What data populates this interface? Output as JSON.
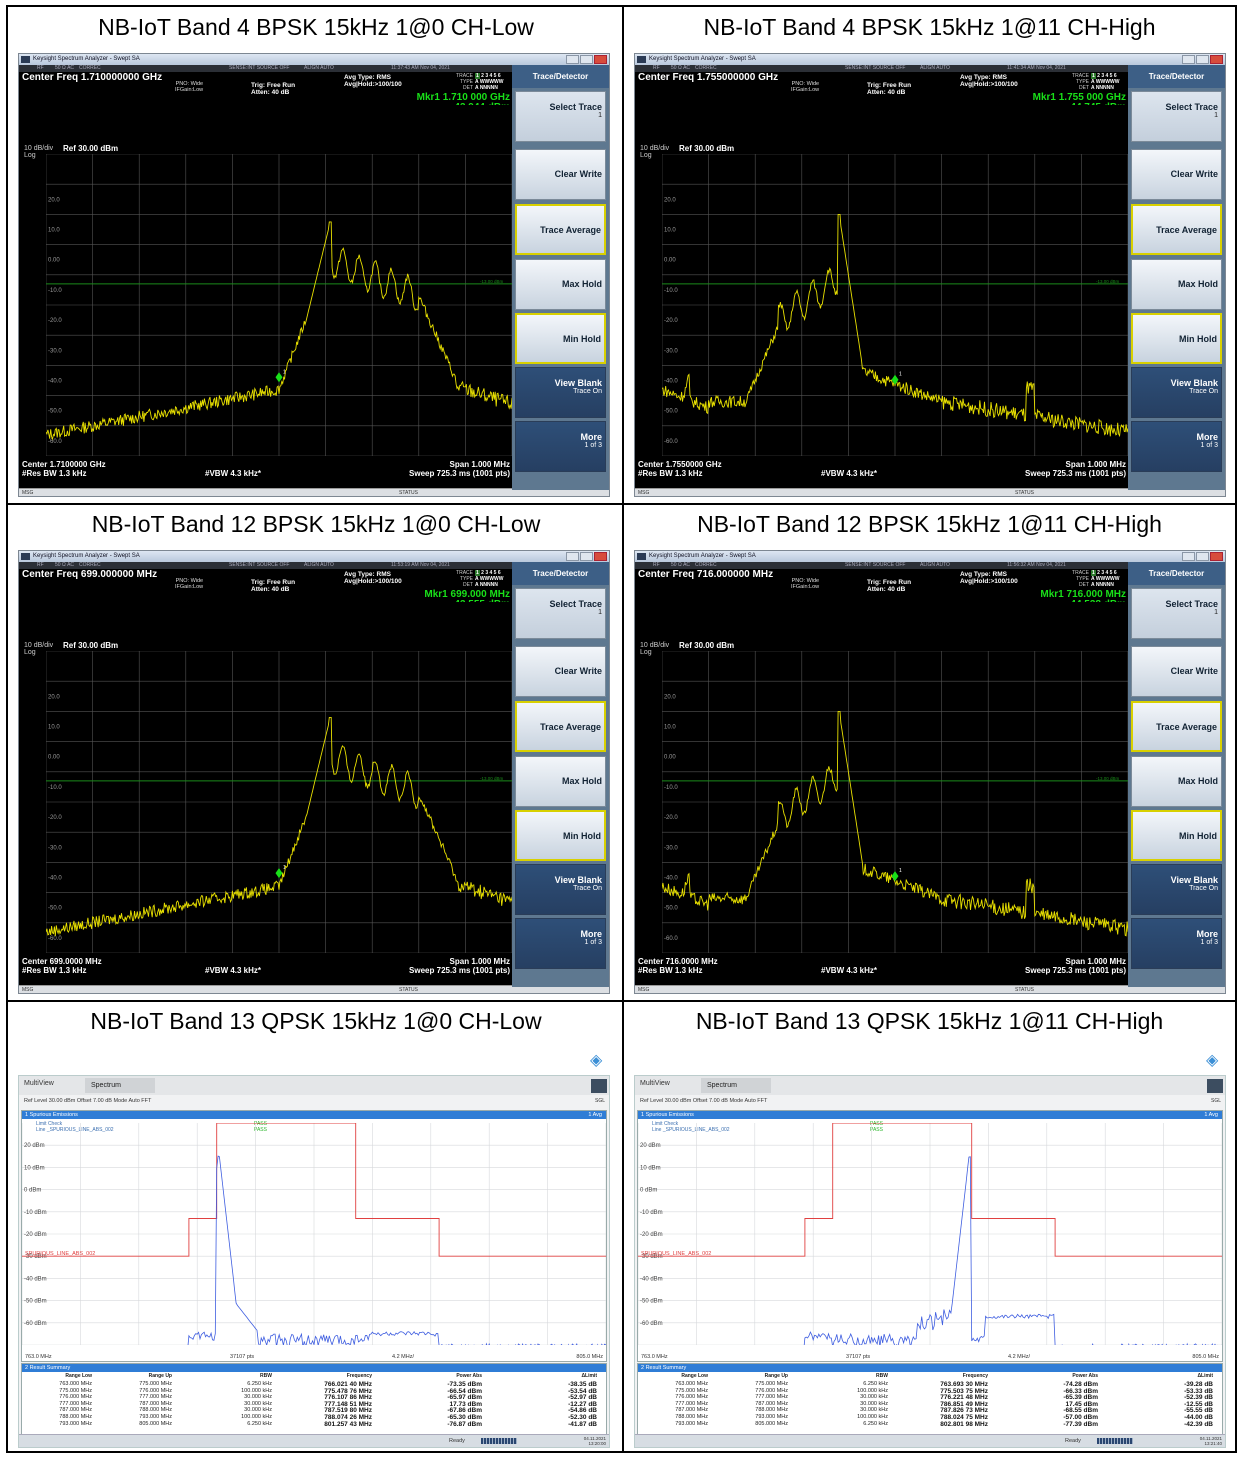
{
  "panels": [
    {
      "caption": "NB-IoT Band 4 BPSK 15kHz 1@0 CH-Low",
      "kind": "keysight",
      "title_bar": "Keysight Spectrum Analyzer - Swept SA",
      "status_strip": {
        "rf": "RF",
        "ohm": "50 Ω AC",
        "correc": "CORREC",
        "sense": "SENSE:INT  SOURCE OFF",
        "align": "ALIGN AUTO",
        "time": "11:37:43 AM Nov 04, 2021"
      },
      "center_freq_label": "Center Freq 1.710000000 GHz",
      "pno": "PNO: Wide",
      "ifgain": "IFGain:Low",
      "trig": "Trig: Free Run",
      "atten": "Atten: 40 dB",
      "avg_type": "Avg Type: RMS",
      "avg_hold": "Avg|Hold:>100/100",
      "trace_label": "TRACE",
      "type_label": "TYPE",
      "det_label": "DET",
      "scale": "10 dB/div",
      "log": "Log",
      "ref": "Ref 30.00 dBm",
      "marker": "Mkr1 1.710 000 GHz",
      "marker_val": "-43.944 dBm",
      "ylabels": [
        "20.0",
        "10.0",
        "0.00",
        "-10.0",
        "-20.0",
        "-30.0",
        "-40.0",
        "-50.0",
        "-60.0"
      ],
      "limit_label": "-13.00 dBm",
      "center_bottom": "Center 1.7100000 GHz",
      "res_bw": "#Res BW 1.3 kHz",
      "vbw": "#VBW 4.3 kHz*",
      "span": "Span 1.000 MHz",
      "sweep": "Sweep  725.3 ms (1001 pts)",
      "msg": "MSG",
      "status": "STATUS",
      "softkey_header": "Trace/Detector",
      "softkeys": [
        {
          "label": "Select Trace",
          "sub": "1"
        },
        {
          "label": "Clear Write",
          "sub": ""
        },
        {
          "label": "Trace Average",
          "sub": ""
        },
        {
          "label": "Max Hold",
          "sub": ""
        },
        {
          "label": "Min Hold",
          "sub": ""
        },
        {
          "label": "View Blank",
          "sub": "Trace On"
        },
        {
          "label": "More",
          "sub": "1 of 3"
        }
      ],
      "spectrum_data": {
        "type": "line",
        "x_span_mhz": 1.0,
        "ylim_dbm": [
          -70,
          30
        ],
        "peak_dbm": 7.5,
        "peak_x": 0.61,
        "marker_x": 0.5,
        "marker_dbm": -43.944,
        "shape": "low"
      }
    },
    {
      "caption": "NB-IoT Band 4 BPSK 15kHz 1@11 CH-High",
      "kind": "keysight",
      "title_bar": "Keysight Spectrum Analyzer - Swept SA",
      "status_strip": {
        "rf": "RF",
        "ohm": "50 Ω AC",
        "correc": "CORREC",
        "sense": "SENSE:INT  SOURCE OFF",
        "align": "ALIGN AUTO",
        "time": "11:41:34 AM Nov 04, 2021"
      },
      "center_freq_label": "Center Freq 1.755000000 GHz",
      "pno": "PNO: Wide",
      "ifgain": "IFGain:Low",
      "trig": "Trig: Free Run",
      "atten": "Atten: 40 dB",
      "avg_type": "Avg Type: RMS",
      "avg_hold": "Avg|Hold:>100/100",
      "trace_label": "TRACE",
      "type_label": "TYPE",
      "det_label": "DET",
      "scale": "10 dB/div",
      "log": "Log",
      "ref": "Ref 30.00 dBm",
      "marker": "Mkr1 1.755 000 GHz",
      "marker_val": "-44.745 dBm",
      "ylabels": [
        "20.0",
        "10.0",
        "0.00",
        "-10.0",
        "-20.0",
        "-30.0",
        "-40.0",
        "-50.0",
        "-60.0"
      ],
      "limit_label": "-13.00 dBm",
      "center_bottom": "Center 1.7550000 GHz",
      "res_bw": "#Res BW 1.3 kHz",
      "vbw": "#VBW 4.3 kHz*",
      "span": "Span 1.000 MHz",
      "sweep": "Sweep  725.3 ms (1001 pts)",
      "msg": "MSG",
      "status": "STATUS",
      "softkey_header": "Trace/Detector",
      "softkeys": [
        {
          "label": "Select Trace",
          "sub": "1"
        },
        {
          "label": "Clear Write",
          "sub": ""
        },
        {
          "label": "Trace Average",
          "sub": ""
        },
        {
          "label": "Max Hold",
          "sub": ""
        },
        {
          "label": "Min Hold",
          "sub": ""
        },
        {
          "label": "View Blank",
          "sub": "Trace On"
        },
        {
          "label": "More",
          "sub": "1 of 3"
        }
      ],
      "spectrum_data": {
        "type": "line",
        "x_span_mhz": 1.0,
        "ylim_dbm": [
          -70,
          30
        ],
        "peak_dbm": 10.0,
        "peak_x": 0.38,
        "marker_x": 0.5,
        "marker_dbm": -44.745,
        "shape": "high"
      }
    },
    {
      "caption": "NB-IoT Band 12 BPSK 15kHz 1@0 CH-Low",
      "kind": "keysight",
      "title_bar": "Keysight Spectrum Analyzer - Swept SA",
      "status_strip": {
        "rf": "RF",
        "ohm": "50 Ω AC",
        "correc": "CORREC",
        "sense": "SENSE:INT  SOURCE OFF",
        "align": "ALIGN AUTO",
        "time": "11:53:19 AM Nov 04, 2021"
      },
      "center_freq_label": "Center Freq 699.000000 MHz",
      "pno": "PNO: Wide",
      "ifgain": "IFGain:Low",
      "trig": "Trig: Free Run",
      "atten": "Atten: 40 dB",
      "avg_type": "Avg Type: RMS",
      "avg_hold": "Avg|Hold:>100/100",
      "trace_label": "TRACE",
      "type_label": "TYPE",
      "det_label": "DET",
      "scale": "10 dB/div",
      "log": "Log",
      "ref": "Ref 30.00 dBm",
      "marker": "Mkr1 699.000 MHz",
      "marker_val": "-43.555 dBm",
      "ylabels": [
        "20.0",
        "10.0",
        "0.00",
        "-10.0",
        "-20.0",
        "-30.0",
        "-40.0",
        "-50.0",
        "-60.0"
      ],
      "limit_label": "-13.00 dBm",
      "center_bottom": "Center 699.0000 MHz",
      "res_bw": "#Res BW 1.3 kHz",
      "vbw": "#VBW 4.3 kHz*",
      "span": "Span 1.000 MHz",
      "sweep": "Sweep  725.3 ms (1001 pts)",
      "msg": "MSG",
      "status": "STATUS",
      "softkey_header": "Trace/Detector",
      "softkeys": [
        {
          "label": "Select Trace",
          "sub": "1"
        },
        {
          "label": "Clear Write",
          "sub": ""
        },
        {
          "label": "Trace Average",
          "sub": ""
        },
        {
          "label": "Max Hold",
          "sub": ""
        },
        {
          "label": "Min Hold",
          "sub": ""
        },
        {
          "label": "View Blank",
          "sub": "Trace On"
        },
        {
          "label": "More",
          "sub": "1 of 3"
        }
      ],
      "spectrum_data": {
        "type": "line",
        "x_span_mhz": 1.0,
        "ylim_dbm": [
          -70,
          30
        ],
        "peak_dbm": 8.0,
        "peak_x": 0.61,
        "marker_x": 0.5,
        "marker_dbm": -43.555,
        "shape": "low"
      }
    },
    {
      "caption": "NB-IoT Band 12 BPSK 15kHz 1@11 CH-High",
      "kind": "keysight",
      "title_bar": "Keysight Spectrum Analyzer - Swept SA",
      "status_strip": {
        "rf": "RF",
        "ohm": "50 Ω AC",
        "correc": "CORREC",
        "sense": "SENSE:INT  SOURCE OFF",
        "align": "ALIGN AUTO",
        "time": "11:56:32 AM Nov 04, 2021"
      },
      "center_freq_label": "Center Freq 716.000000 MHz",
      "pno": "PNO: Wide",
      "ifgain": "IFGain:Low",
      "trig": "Trig: Free Run",
      "atten": "Atten: 40 dB",
      "avg_type": "Avg Type: RMS",
      "avg_hold": "Avg|Hold:>100/100",
      "trace_label": "TRACE",
      "type_label": "TYPE",
      "det_label": "DET",
      "scale": "10 dB/div",
      "log": "Log",
      "ref": "Ref 30.00 dBm",
      "marker": "Mkr1 716.000 MHz",
      "marker_val": "-44.538 dBm",
      "ylabels": [
        "20.0",
        "10.0",
        "0.00",
        "-10.0",
        "-20.0",
        "-30.0",
        "-40.0",
        "-50.0",
        "-60.0"
      ],
      "limit_label": "-13.00 dBm",
      "center_bottom": "Center 716.0000 MHz",
      "res_bw": "#Res BW 1.3 kHz",
      "vbw": "#VBW 4.3 kHz*",
      "span": "Span 1.000 MHz",
      "sweep": "Sweep  725.3 ms (1001 pts)",
      "msg": "MSG",
      "status": "STATUS",
      "softkey_header": "Trace/Detector",
      "softkeys": [
        {
          "label": "Select Trace",
          "sub": "1"
        },
        {
          "label": "Clear Write",
          "sub": ""
        },
        {
          "label": "Trace Average",
          "sub": ""
        },
        {
          "label": "Max Hold",
          "sub": ""
        },
        {
          "label": "Min Hold",
          "sub": ""
        },
        {
          "label": "View Blank",
          "sub": "Trace On"
        },
        {
          "label": "More",
          "sub": "1 of 3"
        }
      ],
      "spectrum_data": {
        "type": "line",
        "x_span_mhz": 1.0,
        "ylim_dbm": [
          -70,
          30
        ],
        "peak_dbm": 10.0,
        "peak_x": 0.38,
        "marker_x": 0.5,
        "marker_dbm": -44.538,
        "shape": "high"
      }
    },
    {
      "caption": "NB-IoT Band 13 QPSK 15kHz 1@0 CH-Low",
      "kind": "rs",
      "tab_multiview": "MultiView",
      "tab_spectrum": "Spectrum",
      "ref_level": "Ref Level  30.00 dBm    Offset  7.00 dB        Mode  Auto FFT",
      "sgl": "SGL",
      "diagram_title": "1 Spurious Emissions",
      "diagram_right": "1 Avg",
      "limit_check": "Limit Check",
      "line_name": "Line _SPURIOUS_LINE_ABS_002",
      "pass1": "PASS",
      "pass2": "PASS",
      "ylabels": [
        "20 dBm",
        "10 dBm",
        "0 dBm",
        "-10 dBm",
        "-20 dBm",
        "-30 dBm",
        "-40 dBm",
        "-50 dBm",
        "-60 dBm"
      ],
      "limit_line_label": "SPURIOUS_LINE_ABS_002",
      "x_start": "763.0 MHz",
      "pts": "37107 pts",
      "step": "4.2 MHz/",
      "x_stop": "805.0 MHz",
      "summary_title": "2 Result Summary",
      "headers": [
        "Range Low",
        "Range Up",
        "RBW",
        "Frequency",
        "Power Abs",
        "ΔLimit"
      ],
      "rows": [
        [
          "763.000 MHz",
          "775.000 MHz",
          "6.250 kHz",
          "766.021 40 MHz",
          "-73.35 dBm",
          "-38.35 dB"
        ],
        [
          "775.000 MHz",
          "776.000 MHz",
          "100.000 kHz",
          "775.478 76 MHz",
          "-66.54 dBm",
          "-53.54 dB"
        ],
        [
          "776.000 MHz",
          "777.000 MHz",
          "30.000 kHz",
          "776.107 86 MHz",
          "-65.97 dBm",
          "-52.97 dB"
        ],
        [
          "777.000 MHz",
          "787.000 MHz",
          "30.000 kHz",
          "777.148 51 MHz",
          "17.73 dBm",
          "-12.27 dB"
        ],
        [
          "787.000 MHz",
          "788.000 MHz",
          "30.000 kHz",
          "787.519 80 MHz",
          "-67.86 dBm",
          "-54.86 dB"
        ],
        [
          "788.000 MHz",
          "793.000 MHz",
          "100.000 kHz",
          "788.074 26 MHz",
          "-65.30 dBm",
          "-52.30 dB"
        ],
        [
          "793.000 MHz",
          "805.000 MHz",
          "6.250 kHz",
          "801.257 43 MHz",
          "-76.87 dBm",
          "-41.87 dB"
        ]
      ],
      "ready": "Ready",
      "clock_date": "04.11.2021",
      "clock_time": "13:20:00",
      "timestamp": "13:20:00  04.11.2021",
      "spectrum_data": {
        "type": "line",
        "xlim_mhz": [
          763.0,
          805.0
        ],
        "ylim_dbm": [
          -70,
          30
        ],
        "peak_mhz": 777.148,
        "peak_dbm": 17.73,
        "limit_steps": [
          [
            763,
            -30
          ],
          [
            775,
            -30
          ],
          [
            775,
            -13
          ],
          [
            777,
            -13
          ],
          [
            777,
            30
          ],
          [
            787,
            30
          ],
          [
            787,
            -13
          ],
          [
            793,
            -13
          ],
          [
            793,
            -30
          ],
          [
            805,
            -30
          ]
        ]
      }
    },
    {
      "caption": "NB-IoT Band 13 QPSK 15kHz 1@11 CH-High",
      "kind": "rs",
      "tab_multiview": "MultiView",
      "tab_spectrum": "Spectrum",
      "ref_level": "Ref Level  30.00 dBm    Offset  7.00 dB        Mode  Auto FFT",
      "sgl": "SGL",
      "diagram_title": "1 Spurious Emissions",
      "diagram_right": "1 Avg",
      "limit_check": "Limit Check",
      "line_name": "Line _SPURIOUS_LINE_ABS_002",
      "pass1": "PASS",
      "pass2": "PASS",
      "ylabels": [
        "20 dBm",
        "10 dBm",
        "0 dBm",
        "-10 dBm",
        "-20 dBm",
        "-30 dBm",
        "-40 dBm",
        "-50 dBm",
        "-60 dBm"
      ],
      "limit_line_label": "SPURIOUS_LINE_ABS_002",
      "x_start": "763.0 MHz",
      "pts": "37107 pts",
      "step": "4.2 MHz/",
      "x_stop": "805.0 MHz",
      "summary_title": "2 Result Summary",
      "headers": [
        "Range Low",
        "Range Up",
        "RBW",
        "Frequency",
        "Power Abs",
        "ΔLimit"
      ],
      "rows": [
        [
          "763.000 MHz",
          "775.000 MHz",
          "6.250 kHz",
          "763.693 30 MHz",
          "-74.28 dBm",
          "-39.28 dB"
        ],
        [
          "775.000 MHz",
          "776.000 MHz",
          "100.000 kHz",
          "775.503 75 MHz",
          "-66.33 dBm",
          "-53.33 dB"
        ],
        [
          "776.000 MHz",
          "777.000 MHz",
          "30.000 kHz",
          "776.221 48 MHz",
          "-65.39 dBm",
          "-52.39 dB"
        ],
        [
          "777.000 MHz",
          "787.000 MHz",
          "30.000 kHz",
          "786.851 49 MHz",
          "17.45 dBm",
          "-12.55 dB"
        ],
        [
          "787.000 MHz",
          "788.000 MHz",
          "30.000 kHz",
          "787.826 73 MHz",
          "-68.55 dBm",
          "-55.55 dB"
        ],
        [
          "788.000 MHz",
          "793.000 MHz",
          "100.000 kHz",
          "788.024 75 MHz",
          "-57.00 dBm",
          "-44.00 dB"
        ],
        [
          "793.000 MHz",
          "805.000 MHz",
          "6.250 kHz",
          "802.801 98 MHz",
          "-77.39 dBm",
          "-42.39 dB"
        ]
      ],
      "ready": "Ready",
      "clock_date": "04.11.2021",
      "clock_time": "13:21:40",
      "timestamp": "13:21:40  04.11.2021",
      "spectrum_data": {
        "type": "line",
        "xlim_mhz": [
          763.0,
          805.0
        ],
        "ylim_dbm": [
          -70,
          30
        ],
        "peak_mhz": 786.851,
        "peak_dbm": 17.45,
        "limit_steps": [
          [
            763,
            -30
          ],
          [
            775,
            -30
          ],
          [
            775,
            -13
          ],
          [
            777,
            -13
          ],
          [
            777,
            30
          ],
          [
            787,
            30
          ],
          [
            787,
            -13
          ],
          [
            793,
            -13
          ],
          [
            793,
            -30
          ],
          [
            805,
            -30
          ]
        ]
      }
    }
  ],
  "colors": {
    "trace_yellow": "#e8e000",
    "limit_green": "#1a8a1a",
    "marker_green": "#19e019",
    "rs_trace": "#3f5ee0",
    "rs_limit": "#e04040",
    "rs_header": "#2f7dd6"
  }
}
